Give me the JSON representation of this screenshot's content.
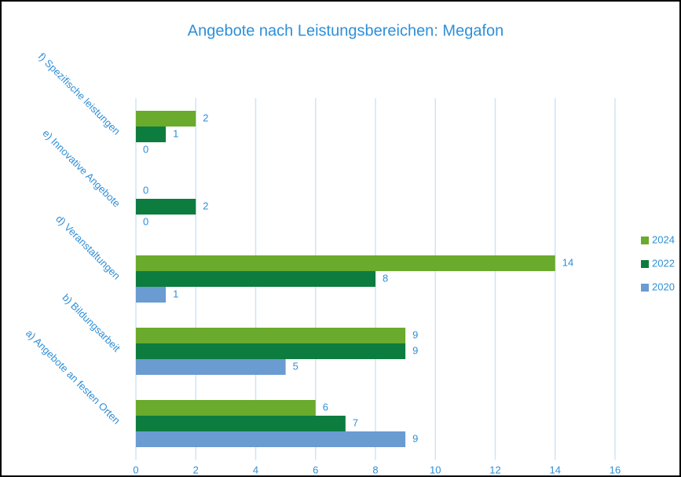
{
  "chart_data": {
    "type": "hbar",
    "title": "Angebote nach Leistungsbereichen: Megafon",
    "categories": [
      "a) Angebote an festen Orten",
      "b) Bildungsarbeit",
      "d) Veranstaltungen",
      "e) Innovative Angebote",
      "f) Spezifische leistungen"
    ],
    "series": [
      {
        "name": "2024",
        "color": "#6aaa2c",
        "values": [
          6,
          9,
          14,
          0,
          2
        ]
      },
      {
        "name": "2022",
        "color": "#0d7c3f",
        "values": [
          7,
          9,
          8,
          2,
          1
        ]
      },
      {
        "name": "2020",
        "color": "#6a9bd1",
        "values": [
          9,
          5,
          1,
          0,
          0
        ]
      }
    ],
    "xlim": [
      0,
      16
    ],
    "xticks": [
      0,
      2,
      4,
      6,
      8,
      10,
      12,
      14,
      16
    ],
    "grid": true,
    "legend": "right"
  }
}
